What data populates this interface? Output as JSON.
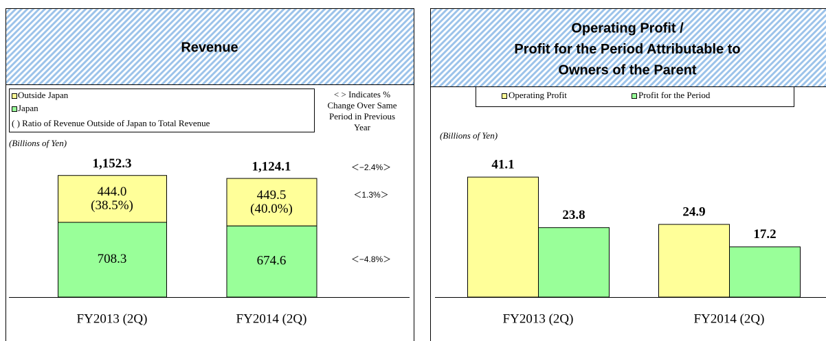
{
  "chart_data": [
    {
      "type": "stacked_bar",
      "title": [
        "Revenue"
      ],
      "categories": [
        "FY2013 (2Q)",
        "FY2014 (2Q)"
      ],
      "series": [
        {
          "name": "Outside Japan",
          "color": "#ffff99",
          "values": [
            444.0,
            449.5
          ],
          "value_labels": [
            "444.0",
            "449.5"
          ]
        },
        {
          "name": "Japan",
          "color": "#99ff99",
          "values": [
            708.3,
            674.6
          ]
        }
      ],
      "legend_note": "( ) Ratio of Revenue Outside of Japan to Total Revenue",
      "ratios": [
        38.5,
        40.0
      ],
      "ratio_labels": [
        "(38.5%)",
        "(40.0%)"
      ],
      "totals": [
        1152.3,
        1124.1
      ],
      "total_labels": [
        "1,152.3",
        "1,124.1"
      ],
      "note_lines": [
        "< > Indicates %",
        "Change Over Same",
        "Period in Previous",
        "Year"
      ],
      "changes": [
        -2.4,
        1.3,
        -4.8
      ],
      "change_labels": [
        "＜−2.4%＞",
        "＜1.3%＞",
        "＜−4.8%＞"
      ],
      "unit_label": "(Billions of Yen)",
      "ylim": [
        0,
        1300
      ]
    },
    {
      "type": "grouped_bar",
      "title": [
        "Operating Profit /",
        "Profit for the Period Attributable to",
        "Owners of the Parent"
      ],
      "categories": [
        "FY2013 (2Q)",
        "FY2014 (2Q)"
      ],
      "series": [
        {
          "name": "Operating Profit",
          "color": "#ffff99",
          "values": [
            41.1,
            24.9
          ]
        },
        {
          "name": "Profit for the Period",
          "color": "#99ff99",
          "values": [
            23.8,
            17.2
          ]
        }
      ],
      "unit_label": "(Billions of Yen)",
      "ylim": [
        0,
        47
      ]
    }
  ]
}
